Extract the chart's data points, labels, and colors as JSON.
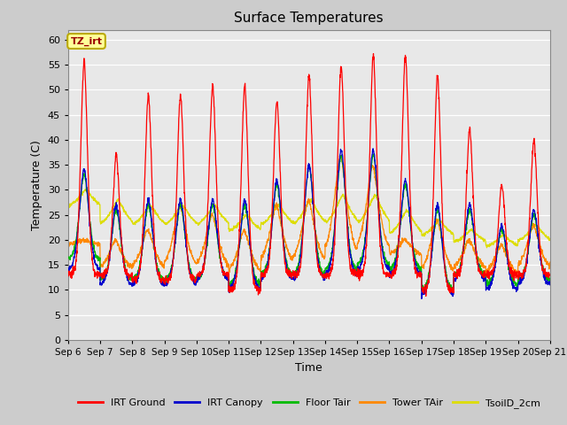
{
  "title": "Surface Temperatures",
  "xlabel": "Time",
  "ylabel": "Temperature (C)",
  "ylim": [
    0,
    62
  ],
  "yticks": [
    0,
    5,
    10,
    15,
    20,
    25,
    30,
    35,
    40,
    45,
    50,
    55,
    60
  ],
  "plot_bg_color": "#e8e8e8",
  "annotation_text": "TZ_irt",
  "annotation_bg": "#ffff99",
  "annotation_border": "#bbaa00",
  "legend": [
    "IRT Ground",
    "IRT Canopy",
    "Floor Tair",
    "Tower TAir",
    "TsoilD_2cm"
  ],
  "legend_colors": [
    "#ff0000",
    "#0000cc",
    "#00bb00",
    "#ff8800",
    "#dddd00"
  ],
  "x_tick_labels": [
    "Sep 6",
    "Sep 7",
    "Sep 8",
    "Sep 9",
    "Sep 10",
    "Sep 11",
    "Sep 12",
    "Sep 13",
    "Sep 14",
    "Sep 15",
    "Sep 16",
    "Sep 17",
    "Sep 18",
    "Sep 19",
    "Sep 20",
    "Sep 21"
  ],
  "n_days": 15,
  "points_per_day": 144
}
